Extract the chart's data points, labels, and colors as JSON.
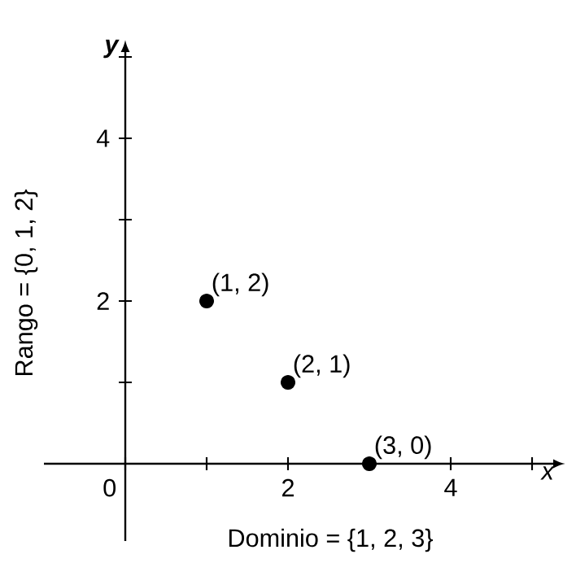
{
  "chart_data": {
    "type": "scatter",
    "xlabel": "x",
    "ylabel": "y",
    "x": [
      1,
      2,
      3
    ],
    "values": [
      2,
      1,
      0
    ],
    "color": "#000000",
    "marker": "circle",
    "xlim": [
      -1,
      5.3
    ],
    "ylim": [
      -0.95,
      5.1
    ],
    "xticks": [
      {
        "value": 0,
        "label": "0"
      },
      {
        "value": 1,
        "label": null
      },
      2,
      {
        "value": 3,
        "label": null
      },
      4,
      {
        "value": 5,
        "label": null
      }
    ],
    "yticks": [
      {
        "value": 1,
        "label": null
      },
      2,
      {
        "value": 3,
        "label": null
      },
      4,
      {
        "value": 5,
        "label": null
      }
    ],
    "grid": false,
    "annotations": [
      {
        "text": "(1, 2)",
        "x": 1,
        "y": 2
      },
      {
        "text": "(2, 1)",
        "x": 2,
        "y": 1
      },
      {
        "text": "(3, 0)",
        "x": 3,
        "y": 0
      },
      "Dominio = {1, 2, 3}",
      "Rango = {0, 1, 2}"
    ]
  }
}
